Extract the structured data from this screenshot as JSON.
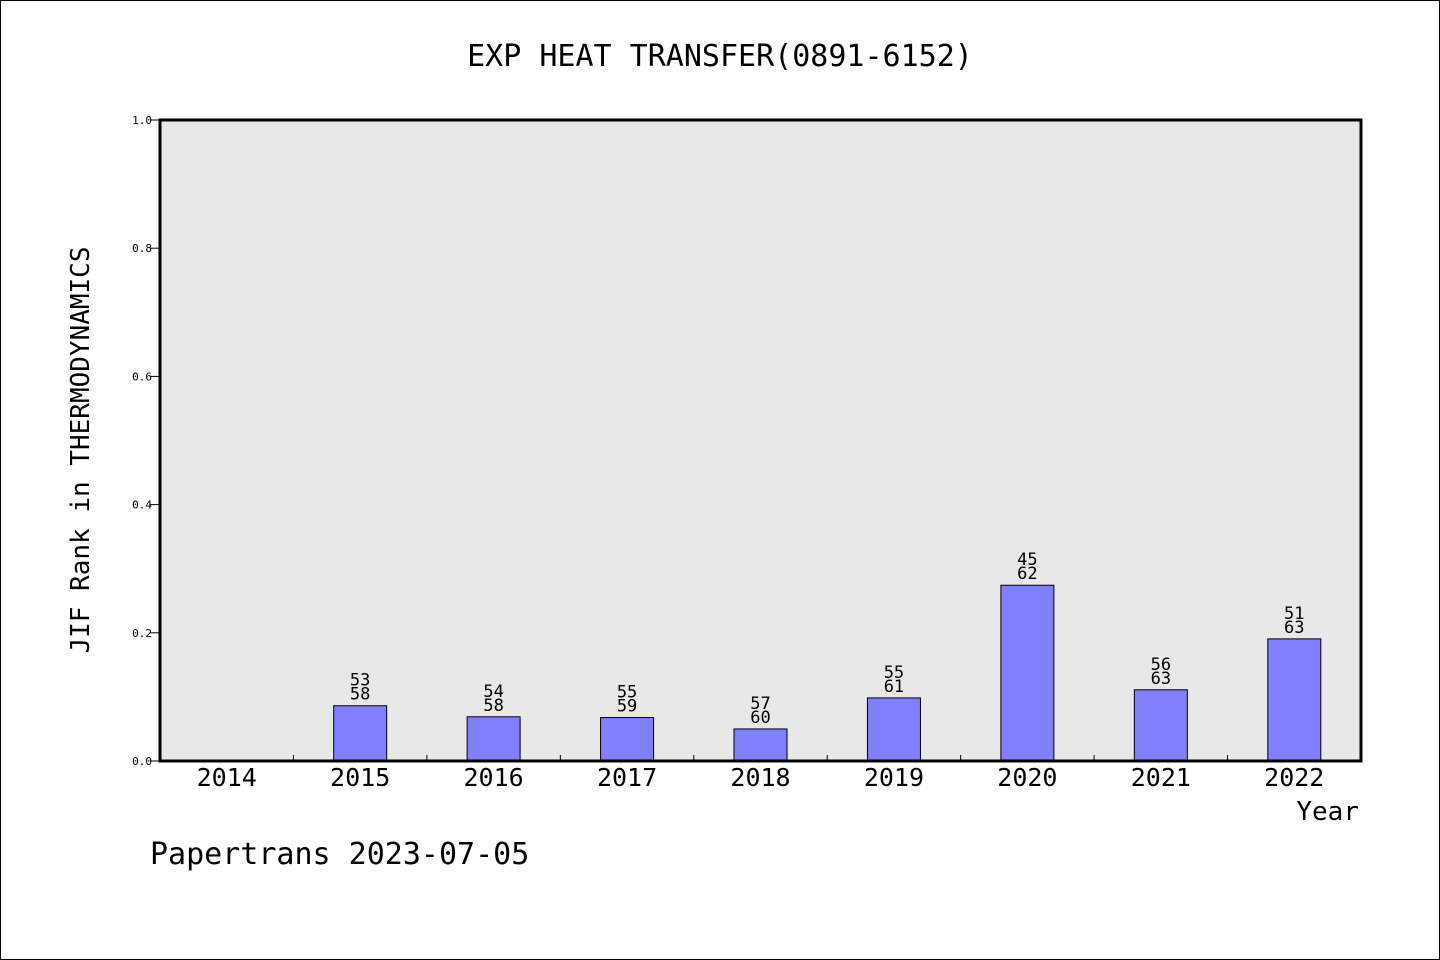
{
  "chart_data": {
    "type": "bar",
    "title": "EXP HEAT TRANSFER(0891-6152)",
    "xlabel": "Year",
    "ylabel": "JIF Rank in THERMODYNAMICS",
    "ylim": [
      0,
      1.0
    ],
    "yticks": [
      "0.0",
      "0.2",
      "0.4",
      "0.6",
      "0.8",
      "1.0"
    ],
    "categories": [
      "2014",
      "2015",
      "2016",
      "2017",
      "2018",
      "2019",
      "2020",
      "2021",
      "2022"
    ],
    "values": [
      null,
      0.0862,
      0.069,
      0.0678,
      0.05,
      0.0984,
      0.2742,
      0.1111,
      0.1905
    ],
    "rank": [
      null,
      "53",
      "54",
      "55",
      "57",
      "55",
      "45",
      "56",
      "51"
    ],
    "total": [
      null,
      "58",
      "58",
      "59",
      "60",
      "61",
      "62",
      "63",
      "63"
    ],
    "bar_color": "#8080ff",
    "plot_background": "#e8e8e8",
    "grid": false,
    "legend": "none"
  },
  "footer": "Papertrans 2023-07-05"
}
